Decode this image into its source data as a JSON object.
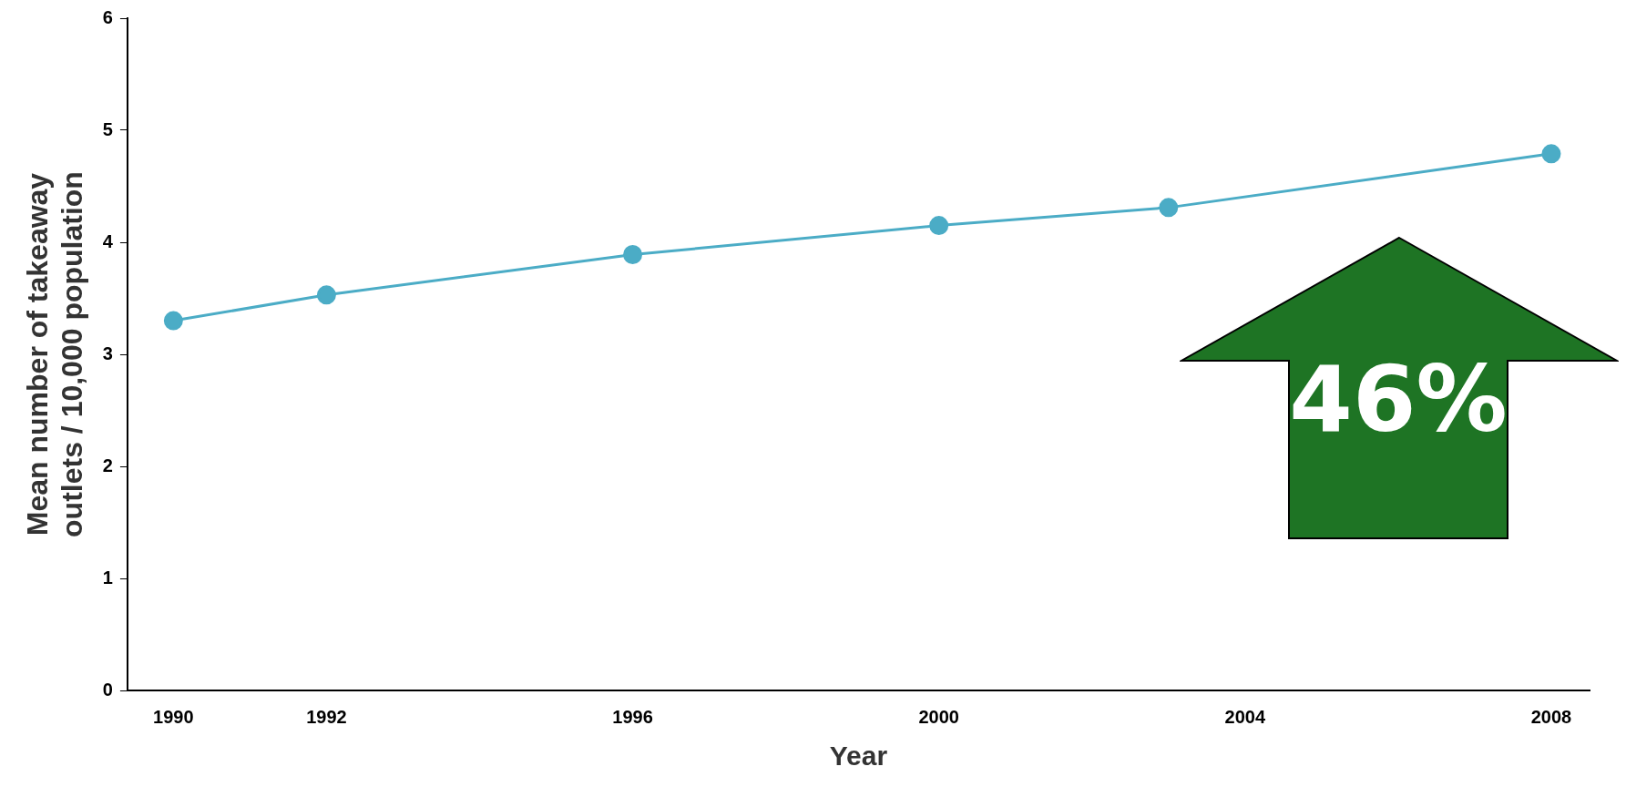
{
  "chart_data": {
    "type": "line",
    "xlabel": "Year",
    "ylabel": "Mean number of takeaway outlets / 10,000 population",
    "x": [
      1990,
      1992,
      1996,
      2000,
      2003,
      2008
    ],
    "series": [
      {
        "color": "#4bacc6",
        "values": [
          3.3,
          3.53,
          3.89,
          4.15,
          4.31,
          4.79
        ]
      }
    ],
    "xlim": [
      1989.4,
      2008.5
    ],
    "xticks": [
      1990,
      1992,
      1996,
      2000,
      2004,
      2008
    ],
    "ylim": [
      0,
      6
    ],
    "yticks": [
      0,
      1,
      2,
      3,
      4,
      5,
      6
    ],
    "grid": false,
    "legend": false,
    "marker": "circle",
    "line_style": "solid",
    "annotations": [
      "46%"
    ]
  }
}
